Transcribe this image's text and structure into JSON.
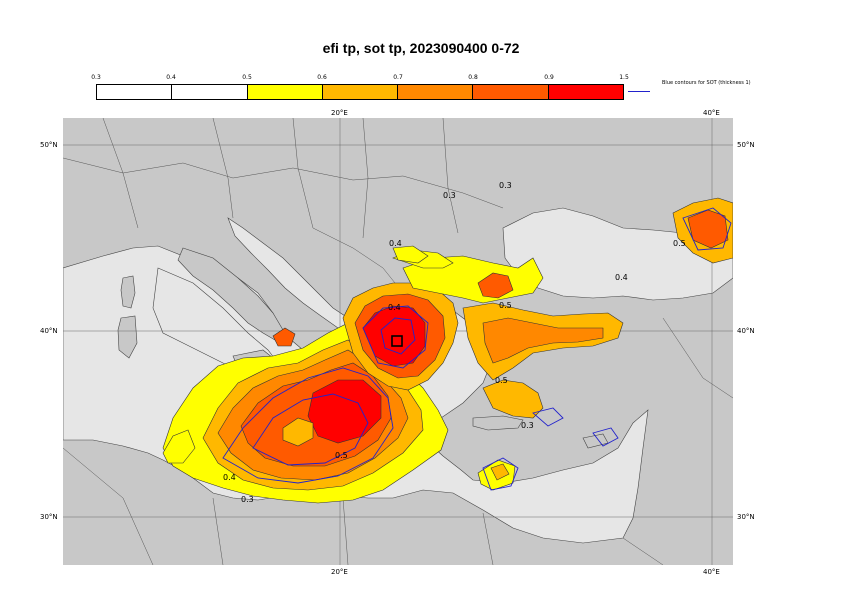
{
  "title": "efi tp, sot tp, 2023090400 0-72",
  "colorbar": {
    "ticks": [
      "0.3",
      "0.4",
      "0.5",
      "0.6",
      "0.7",
      "0.8",
      "0.9",
      "1.5"
    ],
    "colors": [
      "#ffffff",
      "#ffffff",
      "#ffff00",
      "#ffb800",
      "#ff8800",
      "#ff5a00",
      "#ff0000"
    ]
  },
  "legend": {
    "label": "Blue contours for SOT (thickness 1)",
    "color": "#2222cc"
  },
  "axes": {
    "lon_top": [
      "20°E",
      "40°E"
    ],
    "lon_bottom": [
      "20°E",
      "40°E"
    ],
    "lat_left": [
      "50°N",
      "40°N",
      "30°N"
    ],
    "lat_right": [
      "50°N",
      "40°N",
      "30°N"
    ]
  },
  "contour_labels": [
    "0.3",
    "0.3",
    "0.5",
    "0.4",
    "0.4",
    "0.5",
    "0.5",
    "0.3",
    "0.4",
    "0.5",
    "0.3",
    "0.4"
  ],
  "colors": {
    "land": "#c8c8c8",
    "sea": "#e6e6e6",
    "sot": "#2222cc"
  }
}
